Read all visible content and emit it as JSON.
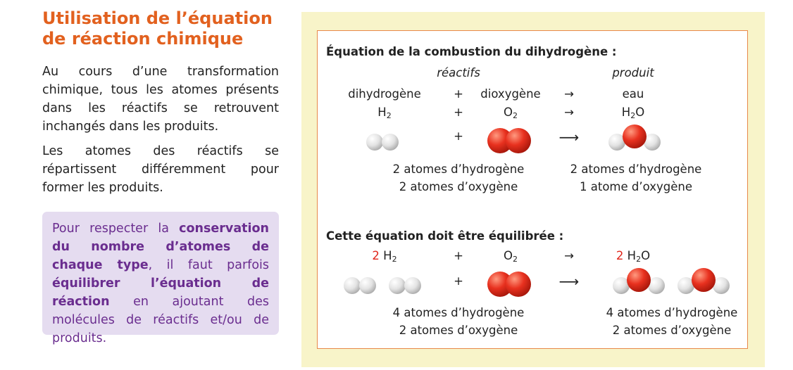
{
  "left": {
    "title_line1": "Utilisation de l’équation",
    "title_line2": "de réaction chimique",
    "para1": "Au cours d’une transformation chimique, tous les atomes présents dans les réactifs se retrouvent inchangés dans les produits.",
    "para2": "Les atomes des réactifs se répartissent différemment pour former les produits.",
    "callout": {
      "t1": "Pour respecter la ",
      "b1": "conservation du nombre d’atomes de chaque type",
      "t2": ", il faut parfois ",
      "b2": "équilibrer l’équation de réaction",
      "t3": " en ajoutant des molécules de réactifs et/ou de produits."
    }
  },
  "panel": {
    "heading1": "Équation de la combustion du dihydrogène :",
    "reactifs": "réactifs",
    "produit": "produit",
    "plus": "+",
    "arrow": "→",
    "long_arrow": "⟶",
    "dihydrogene": "dihydrogène",
    "dioxygene": "dioxygène",
    "eau": "eau",
    "H": "H",
    "O": "O",
    "sub2": "2",
    "coef": "2",
    "react_counts": [
      "2 atomes d’hydrogène",
      "2 atomes d’oxygène"
    ],
    "prod_counts": [
      "2 atomes d’hydrogène",
      "1 atome d’oxygène"
    ],
    "heading2": "Cette équation doit être équilibrée :",
    "react_counts2": [
      "4 atomes d’hydrogène",
      "2 atomes d’oxygène"
    ],
    "prod_counts2": [
      "4 atomes d’hydrogène",
      "2 atomes d’oxygène"
    ]
  },
  "colors": {
    "title": "#e2611f",
    "callout_bg": "#e5dcf0",
    "callout_text": "#6a2d8f",
    "panel_bg": "#f8f4c9",
    "frame_border": "#e8884a",
    "coef_red": "#e0261b",
    "oxygen": "#e8311f",
    "hydrogen": "#e2e2e2"
  }
}
